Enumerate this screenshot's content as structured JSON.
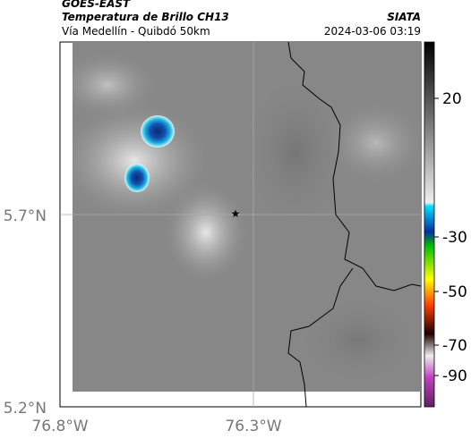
{
  "header": {
    "agency": "GOES-EAST",
    "title": "Temperatura de Brillo CH13",
    "subtitle": "Vía Medellín - Quibdó 50km",
    "source": "SIATA",
    "datetime": "2024-03-06 03:19"
  },
  "map": {
    "lat_ticks": [
      "5.7°N",
      "5.2°N"
    ],
    "lon_ticks": [
      "76.8°W",
      "76.3°W"
    ]
  },
  "colorbar": {
    "ticks": [
      20,
      -30,
      -50,
      -70,
      -90
    ]
  }
}
